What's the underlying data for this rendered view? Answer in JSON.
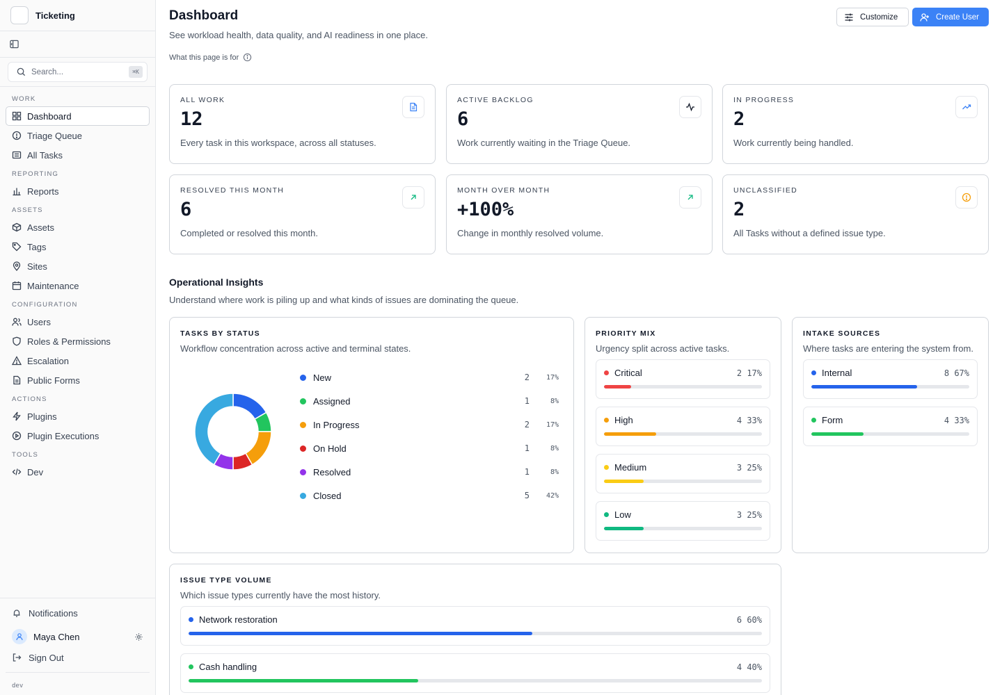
{
  "app": {
    "name": "Ticketing",
    "env": "dev"
  },
  "sidebar": {
    "search": {
      "placeholder": "Search...",
      "shortcut": "⌘K"
    },
    "sections": [
      {
        "label": "WORK",
        "items": [
          {
            "label": "Dashboard",
            "icon": "dashboard-icon",
            "active": true
          },
          {
            "label": "Triage Queue",
            "icon": "alert-circle-icon"
          },
          {
            "label": "All Tasks",
            "icon": "tasks-icon"
          }
        ]
      },
      {
        "label": "REPORTING",
        "items": [
          {
            "label": "Reports",
            "icon": "bar-chart-icon"
          }
        ]
      },
      {
        "label": "ASSETS",
        "items": [
          {
            "label": "Assets",
            "icon": "box-icon"
          },
          {
            "label": "Tags",
            "icon": "tag-icon"
          },
          {
            "label": "Sites",
            "icon": "map-pin-icon"
          },
          {
            "label": "Maintenance",
            "icon": "calendar-icon"
          }
        ]
      },
      {
        "label": "CONFIGURATION",
        "items": [
          {
            "label": "Users",
            "icon": "users-icon"
          },
          {
            "label": "Roles & Permissions",
            "icon": "shield-icon"
          },
          {
            "label": "Escalation",
            "icon": "warning-icon"
          },
          {
            "label": "Public Forms",
            "icon": "file-icon"
          }
        ]
      },
      {
        "label": "ACTIONS",
        "items": [
          {
            "label": "Plugins",
            "icon": "zap-icon"
          },
          {
            "label": "Plugin Executions",
            "icon": "play-circle-icon"
          }
        ]
      },
      {
        "label": "TOOLS",
        "items": [
          {
            "label": "Dev",
            "icon": "code-icon"
          }
        ]
      }
    ],
    "footer": {
      "notifications": "Notifications",
      "user": "Maya Chen",
      "signout": "Sign Out"
    }
  },
  "header": {
    "title": "Dashboard",
    "subtitle": "See workload health, data quality, and AI readiness in one place.",
    "help": "What this page is for",
    "customize": "Customize",
    "create_user": "Create User"
  },
  "kpis": [
    {
      "label": "ALL WORK",
      "value": "12",
      "desc": "Every task in this workspace, across all statuses.",
      "icon": "document-icon",
      "color": "#3b82f6"
    },
    {
      "label": "ACTIVE BACKLOG",
      "value": "6",
      "desc": "Work currently waiting in the Triage Queue.",
      "icon": "activity-icon",
      "color": "#111827"
    },
    {
      "label": "IN PROGRESS",
      "value": "2",
      "desc": "Work currently being handled.",
      "icon": "trending-up-icon",
      "color": "#3b82f6"
    },
    {
      "label": "RESOLVED THIS MONTH",
      "value": "6",
      "desc": "Completed or resolved this month.",
      "icon": "arrow-up-right-icon",
      "color": "#10b981"
    },
    {
      "label": "MONTH OVER MONTH",
      "value": "+100%",
      "desc": "Change in monthly resolved volume.",
      "icon": "arrow-up-right-icon",
      "color": "#10b981"
    },
    {
      "label": "UNCLASSIFIED",
      "value": "2",
      "desc": "All Tasks without a defined issue type.",
      "icon": "alert-circle-icon",
      "color": "#f59e0b"
    }
  ],
  "insights": {
    "title": "Operational Insights",
    "subtitle": "Understand where work is piling up and what kinds of issues are dominating the queue."
  },
  "status_panel": {
    "title": "TASKS BY STATUS",
    "subtitle": "Workflow concentration across active and terminal states.",
    "items": [
      {
        "label": "New",
        "count": 2,
        "pct": "17%",
        "color": "#2563eb"
      },
      {
        "label": "Assigned",
        "count": 1,
        "pct": "8%",
        "color": "#22c55e"
      },
      {
        "label": "In Progress",
        "count": 2,
        "pct": "17%",
        "color": "#f59e0b"
      },
      {
        "label": "On Hold",
        "count": 1,
        "pct": "8%",
        "color": "#dc2626"
      },
      {
        "label": "Resolved",
        "count": 1,
        "pct": "8%",
        "color": "#9333ea"
      },
      {
        "label": "Closed",
        "count": 5,
        "pct": "42%",
        "color": "#38a9e0"
      }
    ]
  },
  "priority_panel": {
    "title": "PRIORITY MIX",
    "subtitle": "Urgency split across active tasks.",
    "items": [
      {
        "label": "Critical",
        "count": "2",
        "pct": "17%",
        "fraction": 0.17,
        "color": "#ef4444"
      },
      {
        "label": "High",
        "count": "4",
        "pct": "33%",
        "fraction": 0.33,
        "color": "#f59e0b"
      },
      {
        "label": "Medium",
        "count": "3",
        "pct": "25%",
        "fraction": 0.25,
        "color": "#facc15"
      },
      {
        "label": "Low",
        "count": "3",
        "pct": "25%",
        "fraction": 0.25,
        "color": "#10b981"
      }
    ]
  },
  "intake_panel": {
    "title": "INTAKE SOURCES",
    "subtitle": "Where tasks are entering the system from.",
    "items": [
      {
        "label": "Internal",
        "count": "8",
        "pct": "67%",
        "fraction": 0.67,
        "color": "#2563eb"
      },
      {
        "label": "Form",
        "count": "4",
        "pct": "33%",
        "fraction": 0.33,
        "color": "#22c55e"
      }
    ]
  },
  "issue_panel": {
    "title": "ISSUE TYPE VOLUME",
    "subtitle": "Which issue types currently have the most history.",
    "items": [
      {
        "label": "Network restoration",
        "count": "6",
        "pct": "60%",
        "fraction": 0.6,
        "color": "#2563eb"
      },
      {
        "label": "Cash handling",
        "count": "4",
        "pct": "40%",
        "fraction": 0.4,
        "color": "#22c55e"
      }
    ]
  }
}
